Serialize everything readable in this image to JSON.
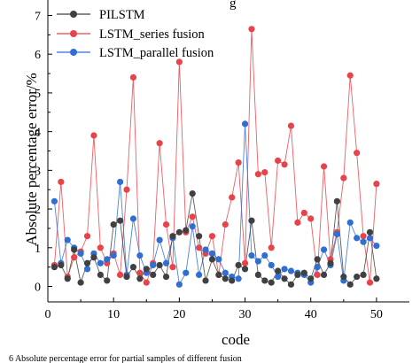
{
  "chart_data": {
    "type": "line",
    "title_partial": "g",
    "xlabel": "code",
    "ylabel": "Absolute percentage error/%",
    "xlim": [
      0,
      55
    ],
    "ylim": [
      -0.4,
      7.4
    ],
    "x_ticks": [
      "0",
      "10",
      "20",
      "30",
      "40",
      "50"
    ],
    "y_ticks": [
      "0",
      "1",
      "2",
      "3",
      "4",
      "5",
      "6",
      "7"
    ],
    "legend_position": "top-left",
    "caption_partial": "6   Absolute percentage error for partial samples of different fusion",
    "x": [
      1,
      2,
      3,
      4,
      5,
      6,
      7,
      8,
      9,
      10,
      11,
      12,
      13,
      14,
      15,
      16,
      17,
      18,
      19,
      20,
      21,
      22,
      23,
      24,
      25,
      26,
      27,
      28,
      29,
      30,
      31,
      32,
      33,
      34,
      35,
      36,
      37,
      38,
      39,
      40,
      41,
      42,
      43,
      44,
      45,
      46,
      47,
      48,
      49,
      50
    ],
    "series": [
      {
        "name": "PILSTM",
        "color": "#404040",
        "values": [
          0.5,
          0.55,
          0.2,
          0.95,
          0.1,
          0.6,
          0.75,
          0.3,
          0.15,
          1.6,
          1.7,
          0.25,
          0.5,
          0.2,
          0.45,
          0.3,
          0.55,
          0.25,
          1.3,
          1.4,
          1.45,
          2.4,
          1.3,
          0.15,
          0.7,
          0.3,
          0.2,
          0.15,
          0.55,
          0.45,
          1.7,
          0.3,
          0.15,
          0.1,
          0.4,
          0.2,
          0.05,
          0.3,
          0.35,
          0.2,
          0.7,
          0.3,
          0.6,
          2.2,
          0.25,
          0.05,
          0.25,
          0.3,
          1.4,
          0.2
        ]
      },
      {
        "name": "LSTM_series fusion",
        "color": "#e8434b",
        "values": [
          0.55,
          2.7,
          0.25,
          0.75,
          0.9,
          1.3,
          3.9,
          1.0,
          0.6,
          0.85,
          0.3,
          2.5,
          5.4,
          0.35,
          0.1,
          0.6,
          3.7,
          1.6,
          0.5,
          5.8,
          1.4,
          1.8,
          1.0,
          0.85,
          1.3,
          0.3,
          1.6,
          2.3,
          3.2,
          0.6,
          6.65,
          2.9,
          2.95,
          1.0,
          3.25,
          3.15,
          4.15,
          1.65,
          1.9,
          1.75,
          0.3,
          3.1,
          0.7,
          1.4,
          2.8,
          5.45,
          3.45,
          1.3,
          0.1,
          2.65
        ]
      },
      {
        "name": "LSTM_parallel fusion",
        "color": "#2f6fd4",
        "values": [
          2.2,
          0.6,
          1.2,
          1.0,
          0.85,
          0.45,
          0.85,
          0.6,
          0.7,
          0.8,
          2.7,
          0.3,
          1.75,
          0.8,
          0.35,
          0.55,
          1.2,
          0.6,
          1.25,
          0.05,
          0.35,
          1.55,
          0.3,
          0.95,
          0.85,
          0.7,
          0.35,
          0.25,
          0.2,
          4.2,
          0.8,
          0.65,
          0.8,
          0.55,
          0.25,
          0.45,
          0.4,
          0.35,
          0.3,
          0.1,
          0.5,
          0.95,
          0.55,
          1.35,
          0.15,
          1.65,
          1.25,
          1.15,
          1.25,
          1.05
        ]
      }
    ]
  }
}
